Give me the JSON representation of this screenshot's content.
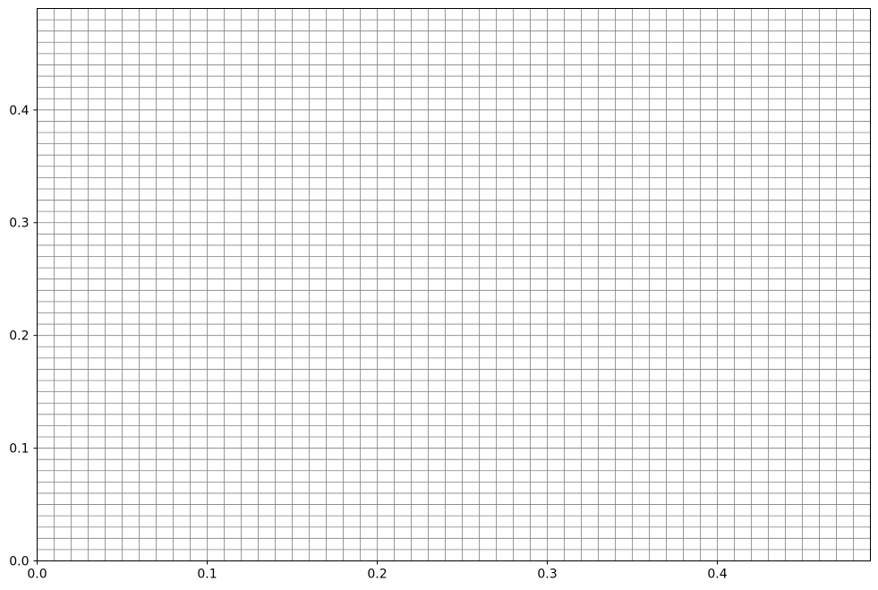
{
  "chart_data": {
    "type": "line",
    "title": "",
    "xlabel": "",
    "ylabel": "",
    "xlim": [
      0,
      0.49
    ],
    "ylim": [
      0,
      0.49
    ],
    "grid": true,
    "grid_step_x": 0.01,
    "grid_step_y": 0.01,
    "grid_color": "#808080",
    "xticks": [
      {
        "value": 0.0,
        "label": "0.0"
      },
      {
        "value": 0.1,
        "label": "0.1"
      },
      {
        "value": 0.2,
        "label": "0.2"
      },
      {
        "value": 0.3,
        "label": "0.3"
      },
      {
        "value": 0.4,
        "label": "0.4"
      }
    ],
    "yticks": [
      {
        "value": 0.0,
        "label": "0.0"
      },
      {
        "value": 0.1,
        "label": "0.1"
      },
      {
        "value": 0.2,
        "label": "0.2"
      },
      {
        "value": 0.3,
        "label": "0.3"
      },
      {
        "value": 0.4,
        "label": "0.4"
      }
    ],
    "series": []
  }
}
